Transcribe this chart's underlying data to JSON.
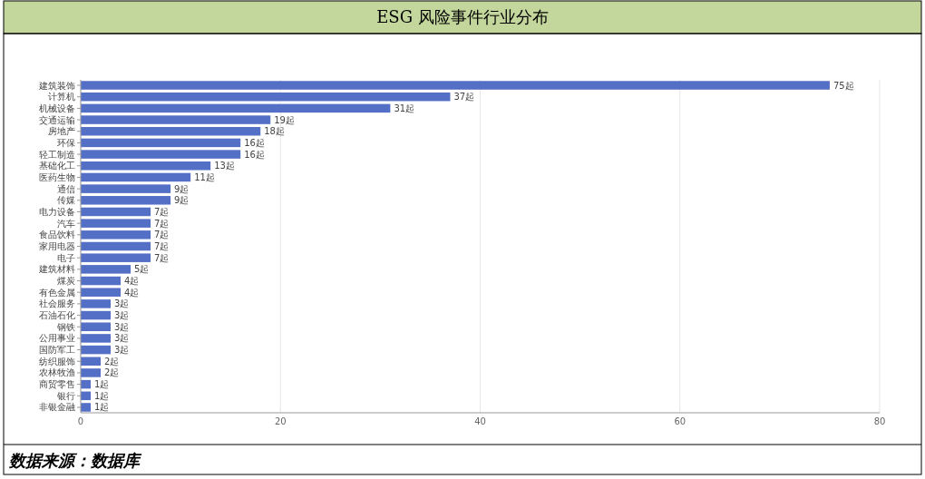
{
  "chart_data": {
    "type": "bar",
    "orientation": "horizontal",
    "title": "ESG 风险事件行业分布",
    "categories": [
      "建筑装饰",
      "计算机",
      "机械设备",
      "交通运输",
      "房地产",
      "环保",
      "轻工制造",
      "基础化工",
      "医药生物",
      "通信",
      "传媒",
      "电力设备",
      "汽车",
      "食品饮料",
      "家用电器",
      "电子",
      "建筑材料",
      "煤炭",
      "有色金属",
      "社会服务",
      "石油石化",
      "钢铁",
      "公用事业",
      "国防军工",
      "纺织服饰",
      "农林牧渔",
      "商贸零售",
      "银行",
      "非银金融"
    ],
    "values": [
      75,
      37,
      31,
      19,
      18,
      16,
      16,
      13,
      11,
      9,
      9,
      7,
      7,
      7,
      7,
      7,
      5,
      4,
      4,
      3,
      3,
      3,
      3,
      3,
      2,
      2,
      1,
      1,
      1
    ],
    "value_labels": [
      "75起",
      "37起",
      "31起",
      "19起",
      "18起",
      "16起",
      "16起",
      "13起",
      "11起",
      "9起",
      "9起",
      "7起",
      "7起",
      "7起",
      "7起",
      "7起",
      "5起",
      "4起",
      "4起",
      "3起",
      "3起",
      "3起",
      "3起",
      "3起",
      "2起",
      "2起",
      "1起",
      "1起",
      "1起"
    ],
    "color": "#5470c6",
    "xlim": [
      0,
      80
    ],
    "xticks": [
      0,
      20,
      40,
      60,
      80
    ],
    "grid": "x",
    "annotations": [
      "数据来源：数据库"
    ]
  }
}
